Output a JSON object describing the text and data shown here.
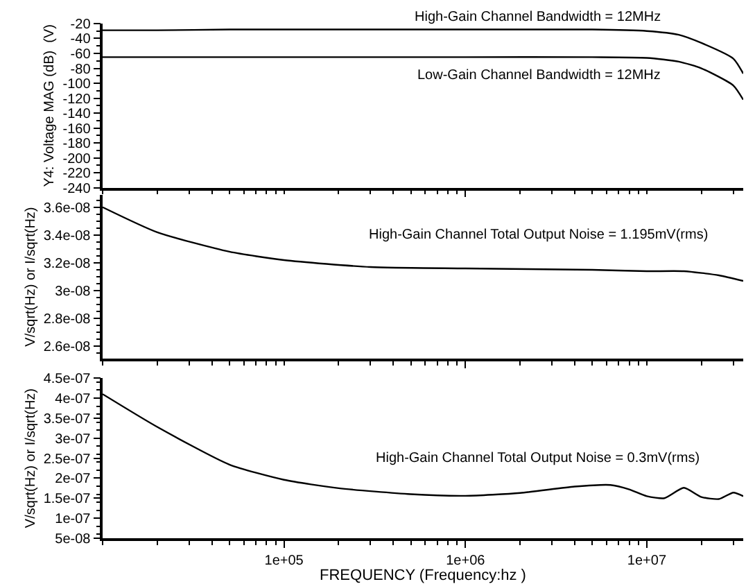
{
  "chart_data": [
    {
      "type": "line",
      "ylabel": "Y4: Voltage MAG (dB)  (V)",
      "log": "x",
      "grid": false,
      "tick_labels": "y",
      "x": [
        10000,
        20000,
        50000,
        100000,
        1000000,
        5000000,
        10000000,
        15000000,
        20000000,
        30000000,
        34000000
      ],
      "series": [
        {
          "color": "#000000",
          "values": [
            -29,
            -29,
            -28,
            -28,
            -28,
            -28,
            -30,
            -35,
            -46,
            -67,
            -87
          ]
        },
        {
          "color": "#000000",
          "values": [
            -65,
            -65,
            -65,
            -65,
            -65,
            -65,
            -66,
            -71,
            -80,
            -103,
            -122
          ]
        }
      ],
      "annotations": [
        "High-Gain Channel Bandwidth = 12MHz",
        "Low-Gain Channel Bandwidth = 12MHz"
      ],
      "xlim": [
        10000,
        34000000
      ],
      "xticks": [
        {
          "value": 100000,
          "label": null
        },
        {
          "value": 1000000,
          "label": null
        },
        {
          "value": 10000000,
          "label": null
        }
      ],
      "ylim": [
        -240,
        -20
      ],
      "yticks": [
        -20,
        -40,
        -60,
        -80,
        -100,
        -120,
        -140,
        -160,
        -180,
        -200,
        -220,
        -240
      ]
    },
    {
      "type": "line",
      "ylabel": "V/sqrt(Hz) or I/sqrt(Hz)",
      "log": "x",
      "grid": false,
      "tick_labels": "y",
      "x": [
        10000,
        20000,
        50000,
        100000,
        300000,
        1000000,
        5000000,
        10000000,
        16000000,
        25000000,
        34000000
      ],
      "series": [
        {
          "color": "#000000",
          "values": [
            3.6e-08,
            3.42e-08,
            3.28e-08,
            3.22e-08,
            3.17e-08,
            3.16e-08,
            3.15e-08,
            3.14e-08,
            3.14e-08,
            3.11e-08,
            3.07e-08
          ]
        }
      ],
      "annotations": [
        "High-Gain Channel Total Output Noise = 1.195mV(rms)"
      ],
      "xlim": [
        10000,
        34000000
      ],
      "xticks": [
        {
          "value": 100000,
          "label": null
        },
        {
          "value": 1000000,
          "label": null
        },
        {
          "value": 10000000,
          "label": null
        }
      ],
      "ylim": [
        2.51e-08,
        3.69e-08
      ],
      "yticks": [
        {
          "value": 2.6e-08,
          "label": "2.6e-08"
        },
        {
          "value": 2.8e-08,
          "label": "2.8e-08"
        },
        {
          "value": 3e-08,
          "label": "3e-08"
        },
        {
          "value": 3.2e-08,
          "label": "3.2e-08"
        },
        {
          "value": 3.4e-08,
          "label": "3.4e-08"
        },
        {
          "value": 3.6e-08,
          "label": "3.6e-08"
        }
      ]
    },
    {
      "type": "line",
      "ylabel": "V/sqrt(Hz) or I/sqrt(Hz)",
      "xlabel": "FREQUENCY (Frequency:hz )",
      "log": "x",
      "grid": false,
      "x": [
        10000,
        20000,
        50000,
        100000,
        200000,
        500000,
        1000000,
        2000000,
        4000000,
        6300000,
        8000000,
        10000000,
        12500000,
        16000000,
        20000000,
        25000000,
        30000000,
        34000000
      ],
      "series": [
        {
          "color": "#000000",
          "values": [
            4.1e-07,
            3.28e-07,
            2.34e-07,
            1.96e-07,
            1.75e-07,
            1.6e-07,
            1.56e-07,
            1.63e-07,
            1.79e-07,
            1.83e-07,
            1.72e-07,
            1.55e-07,
            1.5e-07,
            1.76e-07,
            1.53e-07,
            1.48e-07,
            1.64e-07,
            1.55e-07
          ]
        }
      ],
      "annotations": [
        "High-Gain Channel Total Output Noise = 0.3mV(rms)"
      ],
      "xlim": [
        10000,
        34000000
      ],
      "xticks": [
        {
          "value": 100000,
          "label": "1e+05"
        },
        {
          "value": 1000000,
          "label": "1e+06"
        },
        {
          "value": 10000000,
          "label": "1e+07"
        }
      ],
      "ylim": [
        5e-08,
        4.5e-07
      ],
      "yticks": [
        {
          "value": 5e-08,
          "label": "5e-08"
        },
        {
          "value": 1e-07,
          "label": "1e-07"
        },
        {
          "value": 1.5e-07,
          "label": "1.5e-07"
        },
        {
          "value": 2e-07,
          "label": "2e-07"
        },
        {
          "value": 2.5e-07,
          "label": "2.5e-07"
        },
        {
          "value": 3e-07,
          "label": "3e-07"
        },
        {
          "value": 3.5e-07,
          "label": "3.5e-07"
        },
        {
          "value": 4e-07,
          "label": "4e-07"
        },
        {
          "value": 4.5e-07,
          "label": "4.5e-07"
        }
      ]
    }
  ]
}
